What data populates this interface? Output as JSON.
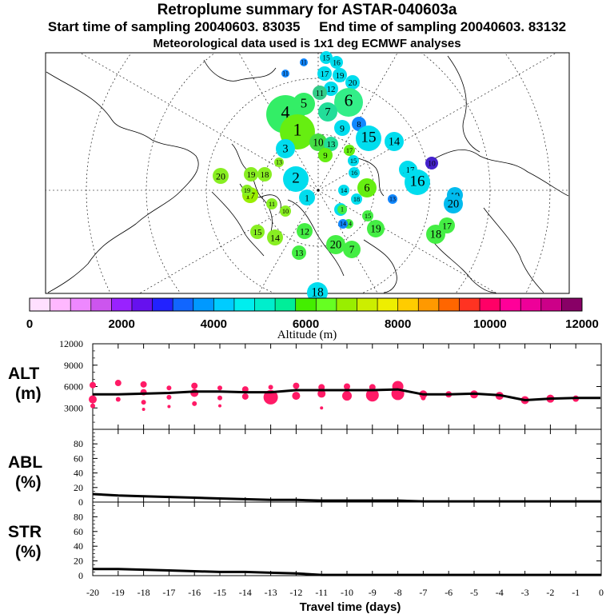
{
  "title": "Retroplume summary for ASTAR-040603a",
  "subtitle_start": "Start time of sampling 20040603. 83035",
  "subtitle_end": "End time of sampling 20040603. 83132",
  "subtitle_met": "Meteorological data used is 1x1 deg ECMWF analyses",
  "colors": {
    "frame": "#000000",
    "alt_dots": "#ff1a66",
    "line": "#000000",
    "coast": "#000000"
  },
  "colorbar": {
    "label": "Altitude (m)",
    "ticks": [
      "0",
      "2000",
      "4000",
      "6000",
      "8000",
      "10000",
      "12000"
    ],
    "colors": [
      "#ffe0ff",
      "#ffb8ff",
      "#ee88ff",
      "#cc55ee",
      "#9922ff",
      "#6611ee",
      "#2222ff",
      "#1166ff",
      "#0099ff",
      "#00ccff",
      "#00eeee",
      "#00eecc",
      "#00ee99",
      "#44ee00",
      "#66ff22",
      "#99ee00",
      "#ccee00",
      "#eeee00",
      "#ffcc00",
      "#ff9900",
      "#ff6600",
      "#ff3322",
      "#ff0066",
      "#ff0099",
      "#ee0099",
      "#cc0088",
      "#880066"
    ]
  },
  "map": {
    "labels": [
      {
        "t": "15",
        "c": "#00ddee",
        "r": 8
      },
      {
        "t": "16",
        "c": "#00ddee",
        "r": 8
      },
      {
        "t": "17",
        "c": "#00ddee",
        "r": 9
      },
      {
        "t": "19",
        "c": "#00ddee",
        "r": 9
      },
      {
        "t": "20",
        "c": "#00ddee",
        "r": 9
      },
      {
        "t": "12",
        "c": "#00ddee",
        "r": 9
      },
      {
        "t": "14",
        "c": "#22ddaa",
        "r": 9
      },
      {
        "t": "11",
        "c": "#33cc88",
        "r": 9
      },
      {
        "t": "4",
        "c": "#33ee66",
        "r": 24
      },
      {
        "t": "5",
        "c": "#33ee66",
        "r": 14
      },
      {
        "t": "6",
        "c": "#33ee88",
        "r": 18
      },
      {
        "t": "7",
        "c": "#22dd99",
        "r": 12
      },
      {
        "t": "1",
        "c": "#66ee11",
        "r": 22
      },
      {
        "t": "10",
        "c": "#44dd44",
        "r": 11
      },
      {
        "t": "9",
        "c": "#00ddee",
        "r": 10
      },
      {
        "t": "8",
        "c": "#1188ff",
        "r": 9
      },
      {
        "t": "15",
        "c": "#00ddee",
        "r": 16
      },
      {
        "t": "14",
        "c": "#00ddee",
        "r": 12
      },
      {
        "t": "13",
        "c": "#22dd99",
        "r": 9
      },
      {
        "t": "3",
        "c": "#00ddee",
        "r": 12
      },
      {
        "t": "9",
        "c": "#66ee11",
        "r": 9
      },
      {
        "t": "17",
        "c": "#66ee11",
        "r": 7
      },
      {
        "t": "15",
        "c": "#00ddee",
        "r": 7
      },
      {
        "t": "16",
        "c": "#00ddee",
        "r": 7
      },
      {
        "t": "2",
        "c": "#00ddee",
        "r": 16
      },
      {
        "t": "1",
        "c": "#00ddee",
        "r": 10
      },
      {
        "t": "13",
        "c": "#88ee22",
        "r": 6
      },
      {
        "t": "20",
        "c": "#88ee22",
        "r": 10
      },
      {
        "t": "19",
        "c": "#88ee22",
        "r": 9
      },
      {
        "t": "18",
        "c": "#88ee22",
        "r": 9
      },
      {
        "t": "17",
        "c": "#99ee00",
        "r": 10
      },
      {
        "t": "19",
        "c": "#88ee22",
        "r": 7
      },
      {
        "t": "11",
        "c": "#88ee22",
        "r": 7
      },
      {
        "t": "10",
        "c": "#88ee22",
        "r": 7
      },
      {
        "t": "17",
        "c": "#00ddee",
        "r": 11
      },
      {
        "t": "6",
        "c": "#66ee11",
        "r": 12
      },
      {
        "t": "18",
        "c": "#00ddee",
        "r": 7
      },
      {
        "t": "13",
        "c": "#1188ff",
        "r": 6
      },
      {
        "t": "14",
        "c": "#00ddee",
        "r": 7
      },
      {
        "t": "2",
        "c": "#00ddee",
        "r": 8
      },
      {
        "t": "15",
        "c": "#44ee44",
        "r": 7
      },
      {
        "t": "14",
        "c": "#44ee44",
        "r": 6
      },
      {
        "t": "1",
        "c": "#44ee44",
        "r": 6
      },
      {
        "t": "19",
        "c": "#44ee44",
        "r": 11
      },
      {
        "t": "15",
        "c": "#88ee22",
        "r": 9
      },
      {
        "t": "14",
        "c": "#88ee22",
        "r": 10
      },
      {
        "t": "12",
        "c": "#44ee44",
        "r": 10
      },
      {
        "t": "13",
        "c": "#44ee44",
        "r": 9
      },
      {
        "t": "20",
        "c": "#44ee44",
        "r": 12
      },
      {
        "t": "7",
        "c": "#44ee44",
        "r": 11
      },
      {
        "t": "18",
        "c": "#00ddee",
        "r": 13
      },
      {
        "t": "17",
        "c": "#00ddee",
        "r": 9
      },
      {
        "t": "16",
        "c": "#00ddee",
        "r": 16
      },
      {
        "t": "10",
        "c": "#4422cc",
        "r": 8
      },
      {
        "t": "19",
        "c": "#00bbee",
        "r": 10
      },
      {
        "t": "20",
        "c": "#00bbee",
        "r": 12
      },
      {
        "t": "17",
        "c": "#44ee44",
        "r": 10
      },
      {
        "t": "18",
        "c": "#44ee44",
        "r": 12
      },
      {
        "t": "14",
        "c": "#1188ff",
        "r": 6
      },
      {
        "t": "11",
        "c": "#1188ff",
        "r": 5
      },
      {
        "t": "11",
        "c": "#1188ff",
        "r": 5
      }
    ]
  },
  "panels": {
    "alt": {
      "label1": "ALT",
      "label2": "(m)",
      "yticks": [
        "12000",
        "9000",
        "6000",
        "3000"
      ]
    },
    "abl": {
      "label1": "ABL",
      "label2": "(%)",
      "yticks": [
        "80",
        "60",
        "40",
        "20",
        "0"
      ]
    },
    "str": {
      "label1": "STR",
      "label2": "(%)",
      "yticks": [
        "80",
        "60",
        "40",
        "20",
        "0"
      ]
    }
  },
  "chart_data": [
    {
      "type": "scatter",
      "title": "ALT (m)",
      "xlabel": "Travel time (days)",
      "ylabel": "ALT (m)",
      "xlim": [
        -20,
        0
      ],
      "ylim": [
        0,
        12000
      ],
      "xticks": [
        "-20",
        "-19",
        "-18",
        "-17",
        "-16",
        "-15",
        "-14",
        "-13",
        "-12",
        "-11",
        "-10",
        "-9",
        "-8",
        "-7",
        "-6",
        "-5",
        "-4",
        "-3",
        "-2",
        "-1",
        "0"
      ],
      "mean_line": {
        "x": [
          -20,
          -19,
          -18,
          -17,
          -16,
          -15,
          -14,
          -13,
          -12,
          -11,
          -10,
          -9,
          -8,
          -7,
          -6,
          -5,
          -4,
          -3,
          -2,
          -1,
          0
        ],
        "y": [
          4900,
          4900,
          5000,
          5100,
          5300,
          5300,
          5200,
          5200,
          5500,
          5500,
          5500,
          5500,
          5600,
          4900,
          4900,
          5000,
          4800,
          4100,
          4300,
          4400,
          4400
        ]
      },
      "dots": [
        {
          "x": -20,
          "y": 6200,
          "r": 4
        },
        {
          "x": -20,
          "y": 4200,
          "r": 5
        },
        {
          "x": -20,
          "y": 3300,
          "r": 3
        },
        {
          "x": -19,
          "y": 6500,
          "r": 4
        },
        {
          "x": -19,
          "y": 4200,
          "r": 3
        },
        {
          "x": -18,
          "y": 6300,
          "r": 4
        },
        {
          "x": -18,
          "y": 5200,
          "r": 4
        },
        {
          "x": -18,
          "y": 3800,
          "r": 3
        },
        {
          "x": -18,
          "y": 2800,
          "r": 2
        },
        {
          "x": -17,
          "y": 5800,
          "r": 3
        },
        {
          "x": -17,
          "y": 4500,
          "r": 3
        },
        {
          "x": -17,
          "y": 3200,
          "r": 2
        },
        {
          "x": -16,
          "y": 6100,
          "r": 4
        },
        {
          "x": -16,
          "y": 5100,
          "r": 5
        },
        {
          "x": -16,
          "y": 3600,
          "r": 3
        },
        {
          "x": -15,
          "y": 5800,
          "r": 3
        },
        {
          "x": -15,
          "y": 4400,
          "r": 3
        },
        {
          "x": -15,
          "y": 3300,
          "r": 2
        },
        {
          "x": -14,
          "y": 5600,
          "r": 4
        },
        {
          "x": -14,
          "y": 4600,
          "r": 4
        },
        {
          "x": -13,
          "y": 5900,
          "r": 3
        },
        {
          "x": -13,
          "y": 4500,
          "r": 9
        },
        {
          "x": -12,
          "y": 6100,
          "r": 4
        },
        {
          "x": -12,
          "y": 4700,
          "r": 5
        },
        {
          "x": -11,
          "y": 5900,
          "r": 4
        },
        {
          "x": -11,
          "y": 5000,
          "r": 5
        },
        {
          "x": -11,
          "y": 3000,
          "r": 2
        },
        {
          "x": -10,
          "y": 6000,
          "r": 4
        },
        {
          "x": -10,
          "y": 4700,
          "r": 6
        },
        {
          "x": -9,
          "y": 5900,
          "r": 4
        },
        {
          "x": -9,
          "y": 4800,
          "r": 8
        },
        {
          "x": -8,
          "y": 6000,
          "r": 7
        },
        {
          "x": -8,
          "y": 5000,
          "r": 8
        },
        {
          "x": -7,
          "y": 4900,
          "r": 5
        },
        {
          "x": -7,
          "y": 4400,
          "r": 3
        },
        {
          "x": -6,
          "y": 4900,
          "r": 4
        },
        {
          "x": -5,
          "y": 4900,
          "r": 5
        },
        {
          "x": -4,
          "y": 4700,
          "r": 5
        },
        {
          "x": -3,
          "y": 4100,
          "r": 5
        },
        {
          "x": -2,
          "y": 4300,
          "r": 5
        },
        {
          "x": -1,
          "y": 4300,
          "r": 4
        }
      ]
    },
    {
      "type": "line",
      "title": "ABL (%)",
      "xlabel": "Travel time (days)",
      "ylabel": "ABL (%)",
      "xlim": [
        -20,
        0
      ],
      "ylim": [
        0,
        100
      ],
      "x": [
        -20,
        -19,
        -18,
        -17,
        -16,
        -15,
        -14,
        -13,
        -12,
        -11,
        -10,
        -9,
        -8,
        -7,
        -6,
        -5,
        -4,
        -3,
        -2,
        -1,
        0
      ],
      "y": [
        11,
        9,
        8,
        7,
        6,
        5,
        4,
        3,
        3,
        2,
        2,
        2,
        2,
        1,
        1,
        1,
        1,
        1,
        1,
        1,
        1
      ]
    },
    {
      "type": "line",
      "title": "STR (%)",
      "xlabel": "Travel time (days)",
      "ylabel": "STR (%)",
      "xlim": [
        -20,
        0
      ],
      "ylim": [
        0,
        100
      ],
      "x": [
        -20,
        -19,
        -18,
        -17,
        -16,
        -15,
        -14,
        -13,
        -12,
        -11,
        -10,
        -9,
        -8,
        -7,
        -6,
        -5,
        -4,
        -3,
        -2,
        -1,
        0
      ],
      "y": [
        9,
        9,
        8,
        7,
        6,
        5,
        5,
        4,
        3,
        1,
        1,
        1,
        1,
        1,
        1,
        1,
        1,
        1,
        1,
        1,
        1
      ]
    }
  ]
}
